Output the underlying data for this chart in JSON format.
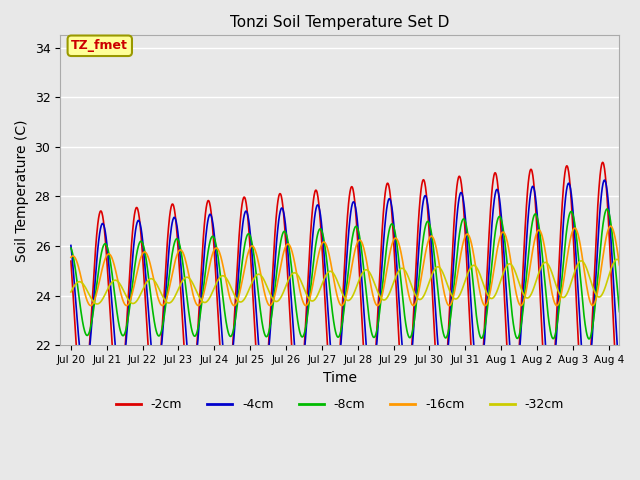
{
  "title": "Tonzi Soil Temperature Set D",
  "xlabel": "Time",
  "ylabel": "Soil Temperature (C)",
  "ylim": [
    22,
    34.5
  ],
  "x_tick_labels": [
    "Jul 20",
    "Jul 21",
    "Jul 22",
    "Jul 23",
    "Jul 24",
    "Jul 25",
    "Jul 26",
    "Jul 27",
    "Jul 28",
    "Jul 29",
    "Jul 30",
    "Jul 31",
    "Aug 1",
    "Aug 2",
    "Aug 3",
    "Aug 4"
  ],
  "legend_labels": [
    "-2cm",
    "-4cm",
    "-8cm",
    "-16cm",
    "-32cm"
  ],
  "line_colors": [
    "#dd0000",
    "#0000cc",
    "#00bb00",
    "#ff9900",
    "#cccc00"
  ],
  "bg_color": "#e8e8e8",
  "plot_bg_color": "#e8e8e8",
  "annotation_text": "TZ_fmet",
  "annotation_bg": "#ffff99",
  "annotation_border": "#999900",
  "annotation_text_color": "#cc0000",
  "grid_color": "#ffffff",
  "yticks": [
    22,
    24,
    26,
    28,
    30,
    32,
    34
  ]
}
